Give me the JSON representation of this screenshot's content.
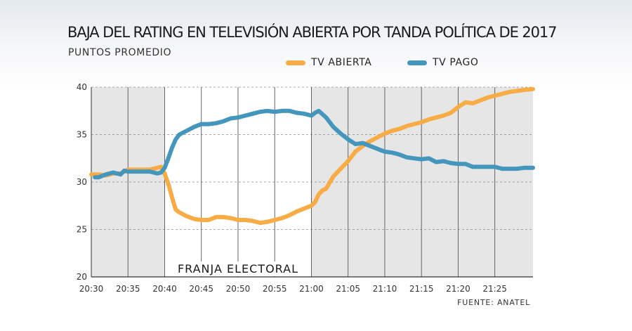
{
  "header": {
    "title": "BAJA DEL RATING EN TELEVISIÓN  ABIERTA POR TANDA POLÍTICA DE 2017",
    "subtitle": "PUNTOS PROMEDIO"
  },
  "source": "FUENTE: ANATEL",
  "colors": {
    "tv_abierta": "#f7ac45",
    "tv_pago": "#4596bd",
    "shade": "#e6e6e6",
    "grid": "#444444"
  },
  "chart_data": {
    "type": "line",
    "title": "BAJA DEL RATING EN TELEVISIÓN  ABIERTA POR TANDA POLÍTICA DE 2017",
    "subtitle": "PUNTOS PROMEDIO",
    "xlabel": "",
    "ylabel": "",
    "ylim": [
      20,
      40
    ],
    "yticks": [
      "20",
      "25",
      "30",
      "35",
      "40"
    ],
    "x_range_minutes": [
      0,
      60.2
    ],
    "x_origin_label": "20:30",
    "xticks": [
      "20:30",
      "20:35",
      "20:40",
      "20:45",
      "20:50",
      "20:55",
      "21:00",
      "21:05",
      "21:10",
      "21:15",
      "21:20",
      "21:25"
    ],
    "shaded_band_minutes": [
      10,
      30
    ],
    "annotation": "FRANJA ELECTORAL",
    "grid": true,
    "legend_position": "top-right",
    "series": [
      {
        "name": "TV ABIERTA",
        "color_key": "tv_abierta",
        "points": [
          [
            0,
            30.8
          ],
          [
            1,
            30.8
          ],
          [
            2,
            30.7
          ],
          [
            3,
            30.9
          ],
          [
            4,
            30.9
          ],
          [
            5,
            31.3
          ],
          [
            6,
            31.3
          ],
          [
            7,
            31.3
          ],
          [
            8,
            31.3
          ],
          [
            9,
            31.5
          ],
          [
            9.5,
            31.6
          ],
          [
            10,
            30.9
          ],
          [
            10.5,
            29.8
          ],
          [
            11,
            28.4
          ],
          [
            11.5,
            27.1
          ],
          [
            12,
            26.8
          ],
          [
            13,
            26.4
          ],
          [
            14,
            26.1
          ],
          [
            15,
            26.0
          ],
          [
            16,
            26.0
          ],
          [
            17,
            26.3
          ],
          [
            18,
            26.3
          ],
          [
            19,
            26.2
          ],
          [
            20,
            26.0
          ],
          [
            21,
            26.0
          ],
          [
            22,
            25.9
          ],
          [
            23,
            25.7
          ],
          [
            24,
            25.8
          ],
          [
            25,
            26.0
          ],
          [
            26,
            26.2
          ],
          [
            27,
            26.5
          ],
          [
            28,
            26.9
          ],
          [
            29,
            27.2
          ],
          [
            30,
            27.5
          ],
          [
            30.5,
            27.9
          ],
          [
            31,
            28.7
          ],
          [
            31.5,
            29.1
          ],
          [
            32,
            29.3
          ],
          [
            33,
            30.6
          ],
          [
            34,
            31.4
          ],
          [
            35,
            32.2
          ],
          [
            36,
            33.2
          ],
          [
            37,
            33.8
          ],
          [
            38,
            34.3
          ],
          [
            39,
            34.7
          ],
          [
            40,
            35.1
          ],
          [
            41,
            35.4
          ],
          [
            42,
            35.6
          ],
          [
            43,
            35.9
          ],
          [
            44,
            36.1
          ],
          [
            45,
            36.3
          ],
          [
            46,
            36.6
          ],
          [
            47,
            36.8
          ],
          [
            48,
            37.0
          ],
          [
            49,
            37.3
          ],
          [
            50,
            37.9
          ],
          [
            51,
            38.4
          ],
          [
            52,
            38.3
          ],
          [
            53,
            38.6
          ],
          [
            54,
            38.9
          ],
          [
            55,
            39.1
          ],
          [
            56,
            39.3
          ],
          [
            57,
            39.5
          ],
          [
            58,
            39.6
          ],
          [
            59,
            39.7
          ],
          [
            60.2,
            39.8
          ]
        ]
      },
      {
        "name": "TV PAGO",
        "color_key": "tv_pago",
        "points": [
          [
            0.5,
            30.5
          ],
          [
            1,
            30.5
          ],
          [
            2,
            30.8
          ],
          [
            3,
            31.0
          ],
          [
            4,
            30.8
          ],
          [
            4.5,
            31.2
          ],
          [
            5,
            31.1
          ],
          [
            6,
            31.1
          ],
          [
            7,
            31.1
          ],
          [
            8,
            31.1
          ],
          [
            9,
            30.9
          ],
          [
            9.5,
            31.0
          ],
          [
            10,
            31.5
          ],
          [
            10.5,
            32.5
          ],
          [
            11,
            33.6
          ],
          [
            11.5,
            34.5
          ],
          [
            12,
            35.0
          ],
          [
            13,
            35.4
          ],
          [
            14,
            35.8
          ],
          [
            15,
            36.1
          ],
          [
            16,
            36.1
          ],
          [
            17,
            36.2
          ],
          [
            18,
            36.4
          ],
          [
            19,
            36.7
          ],
          [
            20,
            36.8
          ],
          [
            21,
            37.0
          ],
          [
            22,
            37.2
          ],
          [
            23,
            37.4
          ],
          [
            24,
            37.5
          ],
          [
            25,
            37.4
          ],
          [
            26,
            37.5
          ],
          [
            27,
            37.5
          ],
          [
            28,
            37.3
          ],
          [
            29,
            37.2
          ],
          [
            30,
            37.0
          ],
          [
            30.5,
            37.3
          ],
          [
            31,
            37.5
          ],
          [
            32,
            36.8
          ],
          [
            33,
            35.8
          ],
          [
            34,
            35.1
          ],
          [
            35,
            34.5
          ],
          [
            36,
            34.0
          ],
          [
            37,
            34.1
          ],
          [
            38,
            33.8
          ],
          [
            39,
            33.5
          ],
          [
            40,
            33.2
          ],
          [
            41,
            33.1
          ],
          [
            42,
            32.9
          ],
          [
            43,
            32.6
          ],
          [
            44,
            32.5
          ],
          [
            45,
            32.4
          ],
          [
            46,
            32.5
          ],
          [
            47,
            32.1
          ],
          [
            48,
            32.2
          ],
          [
            49,
            32.0
          ],
          [
            50,
            31.9
          ],
          [
            51,
            31.9
          ],
          [
            52,
            31.6
          ],
          [
            53,
            31.6
          ],
          [
            54,
            31.6
          ],
          [
            55,
            31.6
          ],
          [
            56,
            31.4
          ],
          [
            57,
            31.4
          ],
          [
            58,
            31.4
          ],
          [
            59,
            31.5
          ],
          [
            60.2,
            31.5
          ]
        ]
      }
    ]
  }
}
